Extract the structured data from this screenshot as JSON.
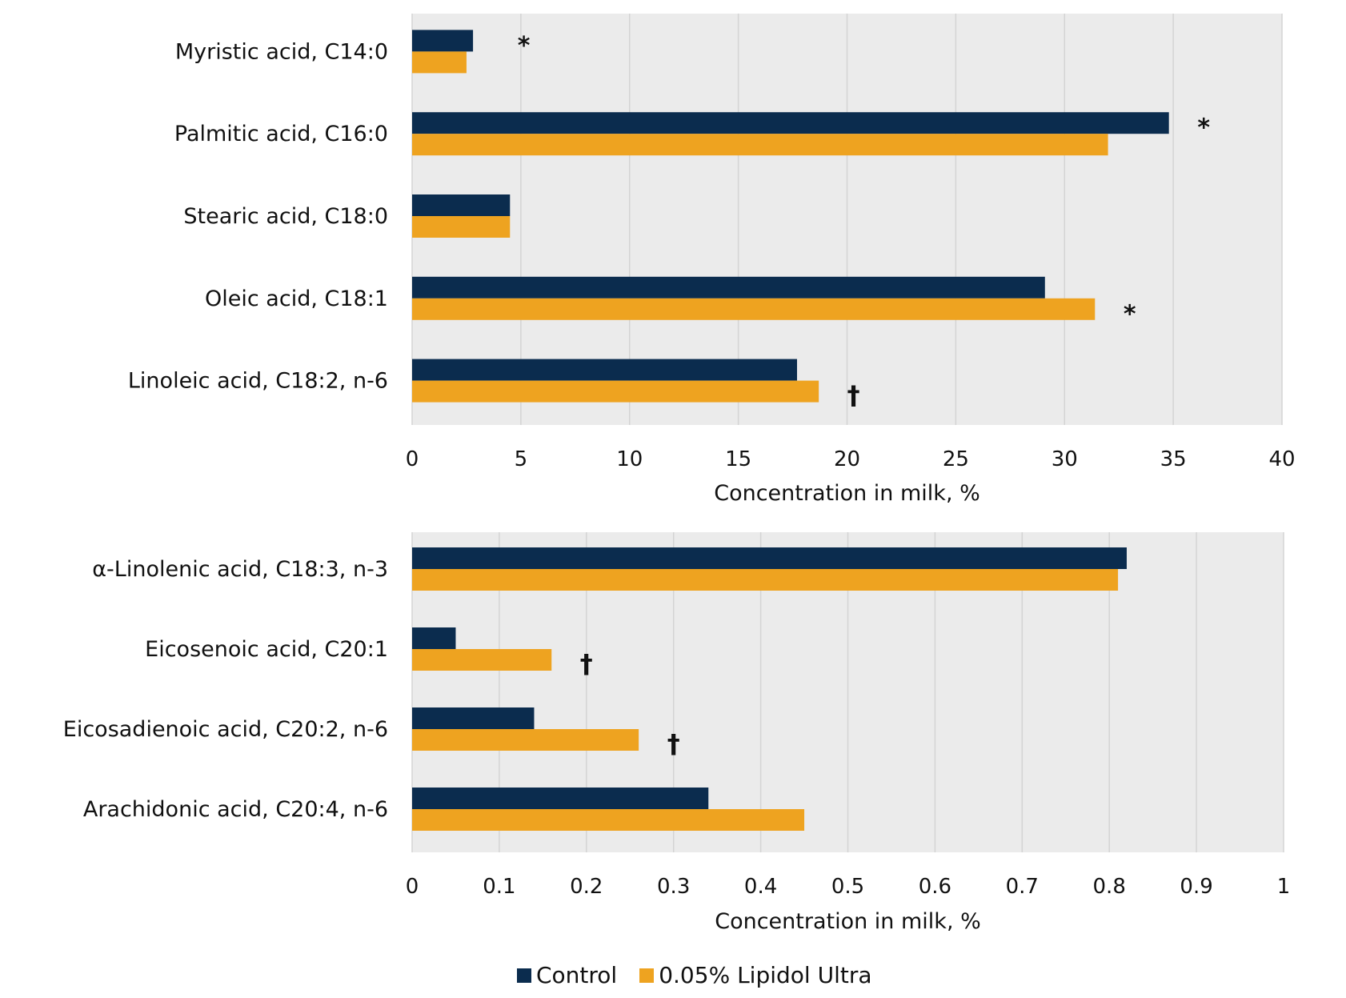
{
  "chart_data": [
    {
      "type": "bar",
      "orientation": "horizontal",
      "categories": [
        "Myristic acid, C14:0",
        "Palmitic acid, C16:0",
        "Stearic acid, C18:0",
        "Oleic acid, C18:1",
        "Linoleic acid, C18:2, n-6"
      ],
      "series": [
        {
          "name": "Control",
          "values": [
            2.8,
            34.8,
            4.5,
            29.1,
            17.7
          ]
        },
        {
          "name": "0.05% Lipidol Ultra",
          "values": [
            2.5,
            32.0,
            4.5,
            31.4,
            18.7
          ]
        }
      ],
      "annotations": [
        {
          "category": "Myristic acid, C14:0",
          "series": "Control",
          "text": "*"
        },
        {
          "category": "Palmitic acid, C16:0",
          "series": "Control",
          "text": "*"
        },
        {
          "category": "Oleic acid, C18:1",
          "series": "0.05% Lipidol Ultra",
          "text": "*"
        },
        {
          "category": "Linoleic acid, C18:2, n-6",
          "series": "0.05% Lipidol Ultra",
          "text": "†"
        }
      ],
      "xlabel": "Concentration in milk, %",
      "xlim": [
        0,
        40
      ],
      "xticks": [
        "0",
        "5",
        "10",
        "15",
        "20",
        "25",
        "30",
        "35",
        "40"
      ],
      "grid": true
    },
    {
      "type": "bar",
      "orientation": "horizontal",
      "categories": [
        "α-Linolenic acid, C18:3, n-3",
        "Eicosenoic acid, C20:1",
        "Eicosadienoic acid, C20:2, n-6",
        "Arachidonic acid, C20:4, n-6"
      ],
      "series": [
        {
          "name": "Control",
          "values": [
            0.82,
            0.05,
            0.14,
            0.34
          ]
        },
        {
          "name": "0.05% Lipidol Ultra",
          "values": [
            0.81,
            0.16,
            0.26,
            0.45
          ]
        }
      ],
      "annotations": [
        {
          "category": "Eicosenoic acid, C20:1",
          "series": "0.05% Lipidol Ultra",
          "text": "†"
        },
        {
          "category": "Eicosadienoic acid, C20:2, n-6",
          "series": "0.05% Lipidol Ultra",
          "text": "†"
        }
      ],
      "xlabel": "Concentration in milk, %",
      "xlim": [
        0,
        1
      ],
      "xticks": [
        "0",
        "0.1",
        "0.2",
        "0.3",
        "0.4",
        "0.5",
        "0.6",
        "0.7",
        "0.8",
        "0.9",
        "1"
      ],
      "grid": true
    }
  ],
  "legend": {
    "position": "bottom",
    "items": [
      {
        "label": "Control",
        "color": "#0b2c4e"
      },
      {
        "label": "0.05% Lipidol Ultra",
        "color": "#eea320"
      }
    ]
  },
  "colors": {
    "plot_bg": "#ebebeb",
    "grid": "#d4d4d4"
  }
}
